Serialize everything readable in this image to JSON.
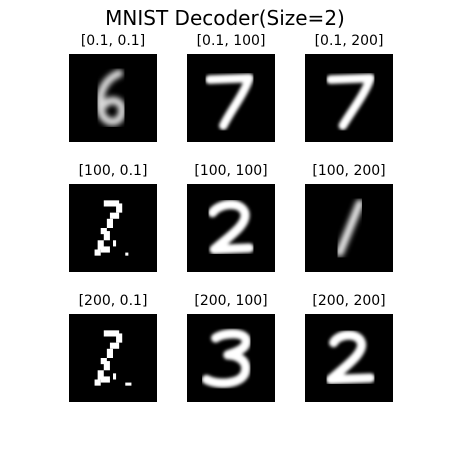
{
  "figure": {
    "title": "MNIST Decoder(Size=2)",
    "background_color": "#ffffff",
    "image_background_color": "#000000",
    "digit_color": "#ffffff"
  },
  "panels": [
    {
      "label": "[0.1, 0.1]",
      "digit": "6"
    },
    {
      "label": "[0.1, 100]",
      "digit": "7"
    },
    {
      "label": "[0.1, 200]",
      "digit": "7"
    },
    {
      "label": "[100, 0.1]",
      "digit": "?"
    },
    {
      "label": "[100, 100]",
      "digit": "2"
    },
    {
      "label": "[100, 200]",
      "digit": "1"
    },
    {
      "label": "[200, 0.1]",
      "digit": "?"
    },
    {
      "label": "[200, 100]",
      "digit": "3"
    },
    {
      "label": "[200, 200]",
      "digit": "2"
    }
  ]
}
